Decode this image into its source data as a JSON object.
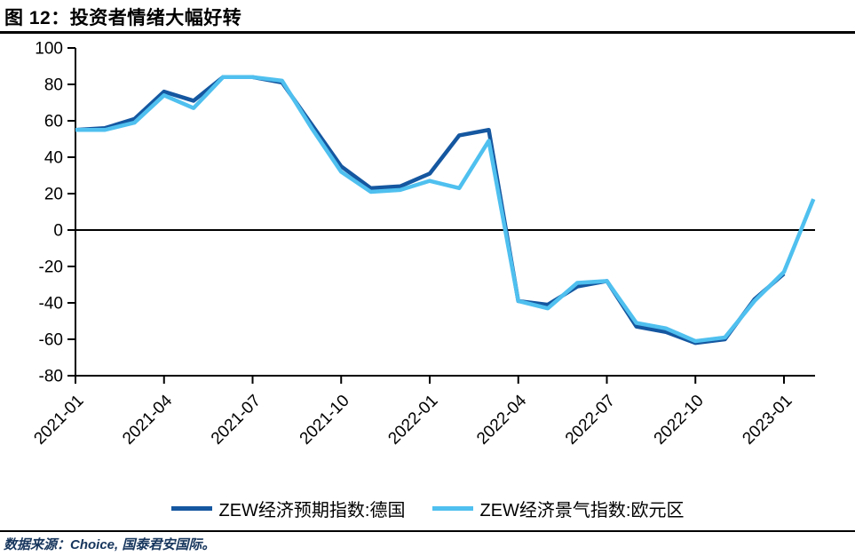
{
  "header": {
    "title": "图 12：投资者情绪大幅好转"
  },
  "footer": {
    "source": "数据来源：Choice, 国泰君安国际。"
  },
  "legend": [
    {
      "label": "ZEW经济预期指数:德国",
      "color": "#1557A0"
    },
    {
      "label": "ZEW经济景气指数:欧元区",
      "color": "#4FC0EF"
    }
  ],
  "chart_data": {
    "type": "line",
    "title": "图 12：投资者情绪大幅好转",
    "categories": [
      "2021-01",
      "2021-02",
      "2021-03",
      "2021-04",
      "2021-05",
      "2021-06",
      "2021-07",
      "2021-08",
      "2021-09",
      "2021-10",
      "2021-11",
      "2021-12",
      "2022-01",
      "2022-02",
      "2022-03",
      "2022-04",
      "2022-05",
      "2022-06",
      "2022-07",
      "2022-08",
      "2022-09",
      "2022-10",
      "2022-11",
      "2022-12",
      "2023-01",
      "2023-02"
    ],
    "series": [
      {
        "name": "ZEW经济预期指数:德国",
        "color": "#1557A0",
        "values": [
          55,
          56,
          61,
          76,
          71,
          84,
          84,
          81,
          58,
          35,
          23,
          24,
          31,
          52,
          55,
          -39,
          -41,
          -31,
          -28,
          -53,
          -56,
          -62,
          -60,
          -38,
          -24,
          null
        ]
      },
      {
        "name": "ZEW经济景气指数:欧元区",
        "color": "#4FC0EF",
        "values": [
          55,
          55,
          59,
          74,
          67,
          84,
          84,
          82,
          56,
          32,
          21,
          22,
          27,
          23,
          49,
          -39,
          -43,
          -29,
          -28,
          -51,
          -54,
          -61,
          -59,
          -39,
          -23,
          17
        ]
      }
    ],
    "ylim": [
      -80,
      100
    ],
    "y_ticks": [
      100,
      80,
      60,
      40,
      20,
      0,
      -20,
      -40,
      -60,
      -80
    ],
    "x_tick_labels": [
      "2021-01",
      "2021-04",
      "2021-07",
      "2021-10",
      "2022-01",
      "2022-04",
      "2022-07",
      "2022-10",
      "2023-01"
    ],
    "x_tick_every": 3,
    "grid": false,
    "zero_line": true,
    "legend_position": "bottom",
    "axis_color": "#000000"
  }
}
